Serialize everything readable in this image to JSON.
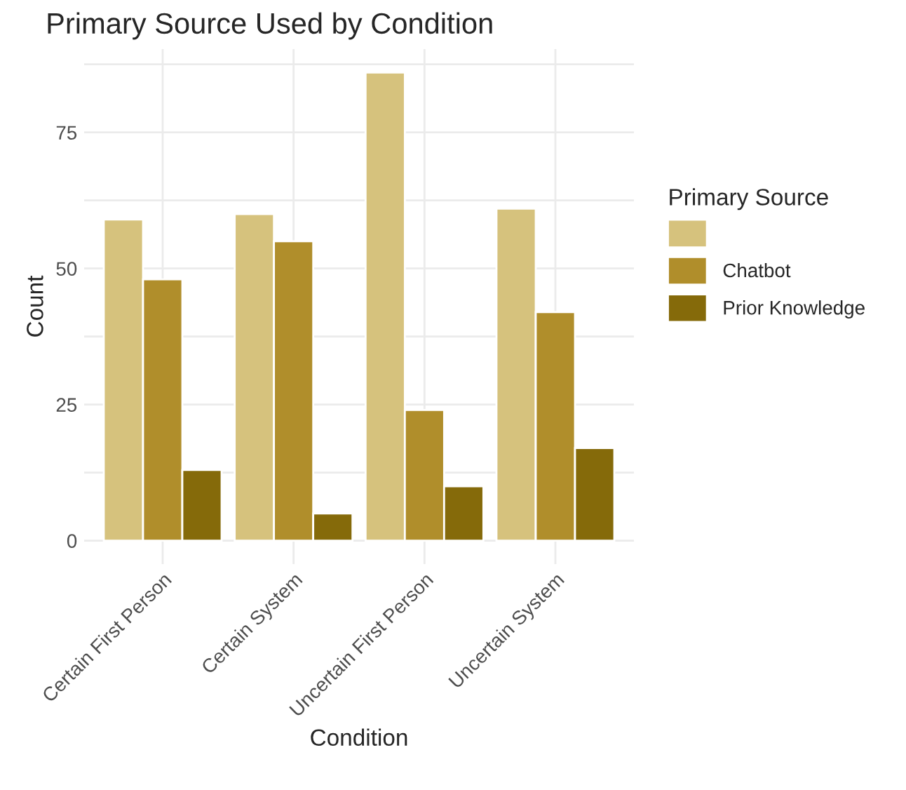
{
  "chart_data": {
    "type": "bar",
    "title": "Primary Source Used by Condition",
    "xlabel": "Condition",
    "ylabel": "Count",
    "legend_title": "Primary Source",
    "categories": [
      "Certain First Person",
      "Certain System",
      "Uncertain First Person",
      "Uncertain System"
    ],
    "series": [
      {
        "color": "#d6c27d",
        "values": [
          59,
          60,
          86,
          61
        ]
      },
      {
        "name": "Chatbot",
        "color": "#b08e2b",
        "values": [
          48,
          55,
          24,
          42
        ]
      },
      {
        "name": "Prior Knowledge",
        "color": "#856a0a",
        "values": [
          13,
          5,
          10,
          17
        ]
      }
    ],
    "ylim": [
      -4.3,
      90.3
    ],
    "yticks": [
      0,
      {
        "value": 12.5,
        "label": null
      },
      25,
      {
        "value": 37.5,
        "label": null
      },
      50,
      {
        "value": 62.5,
        "label": null
      },
      75,
      {
        "value": 87.5,
        "label": null
      }
    ],
    "grid": true,
    "legend": "right"
  }
}
